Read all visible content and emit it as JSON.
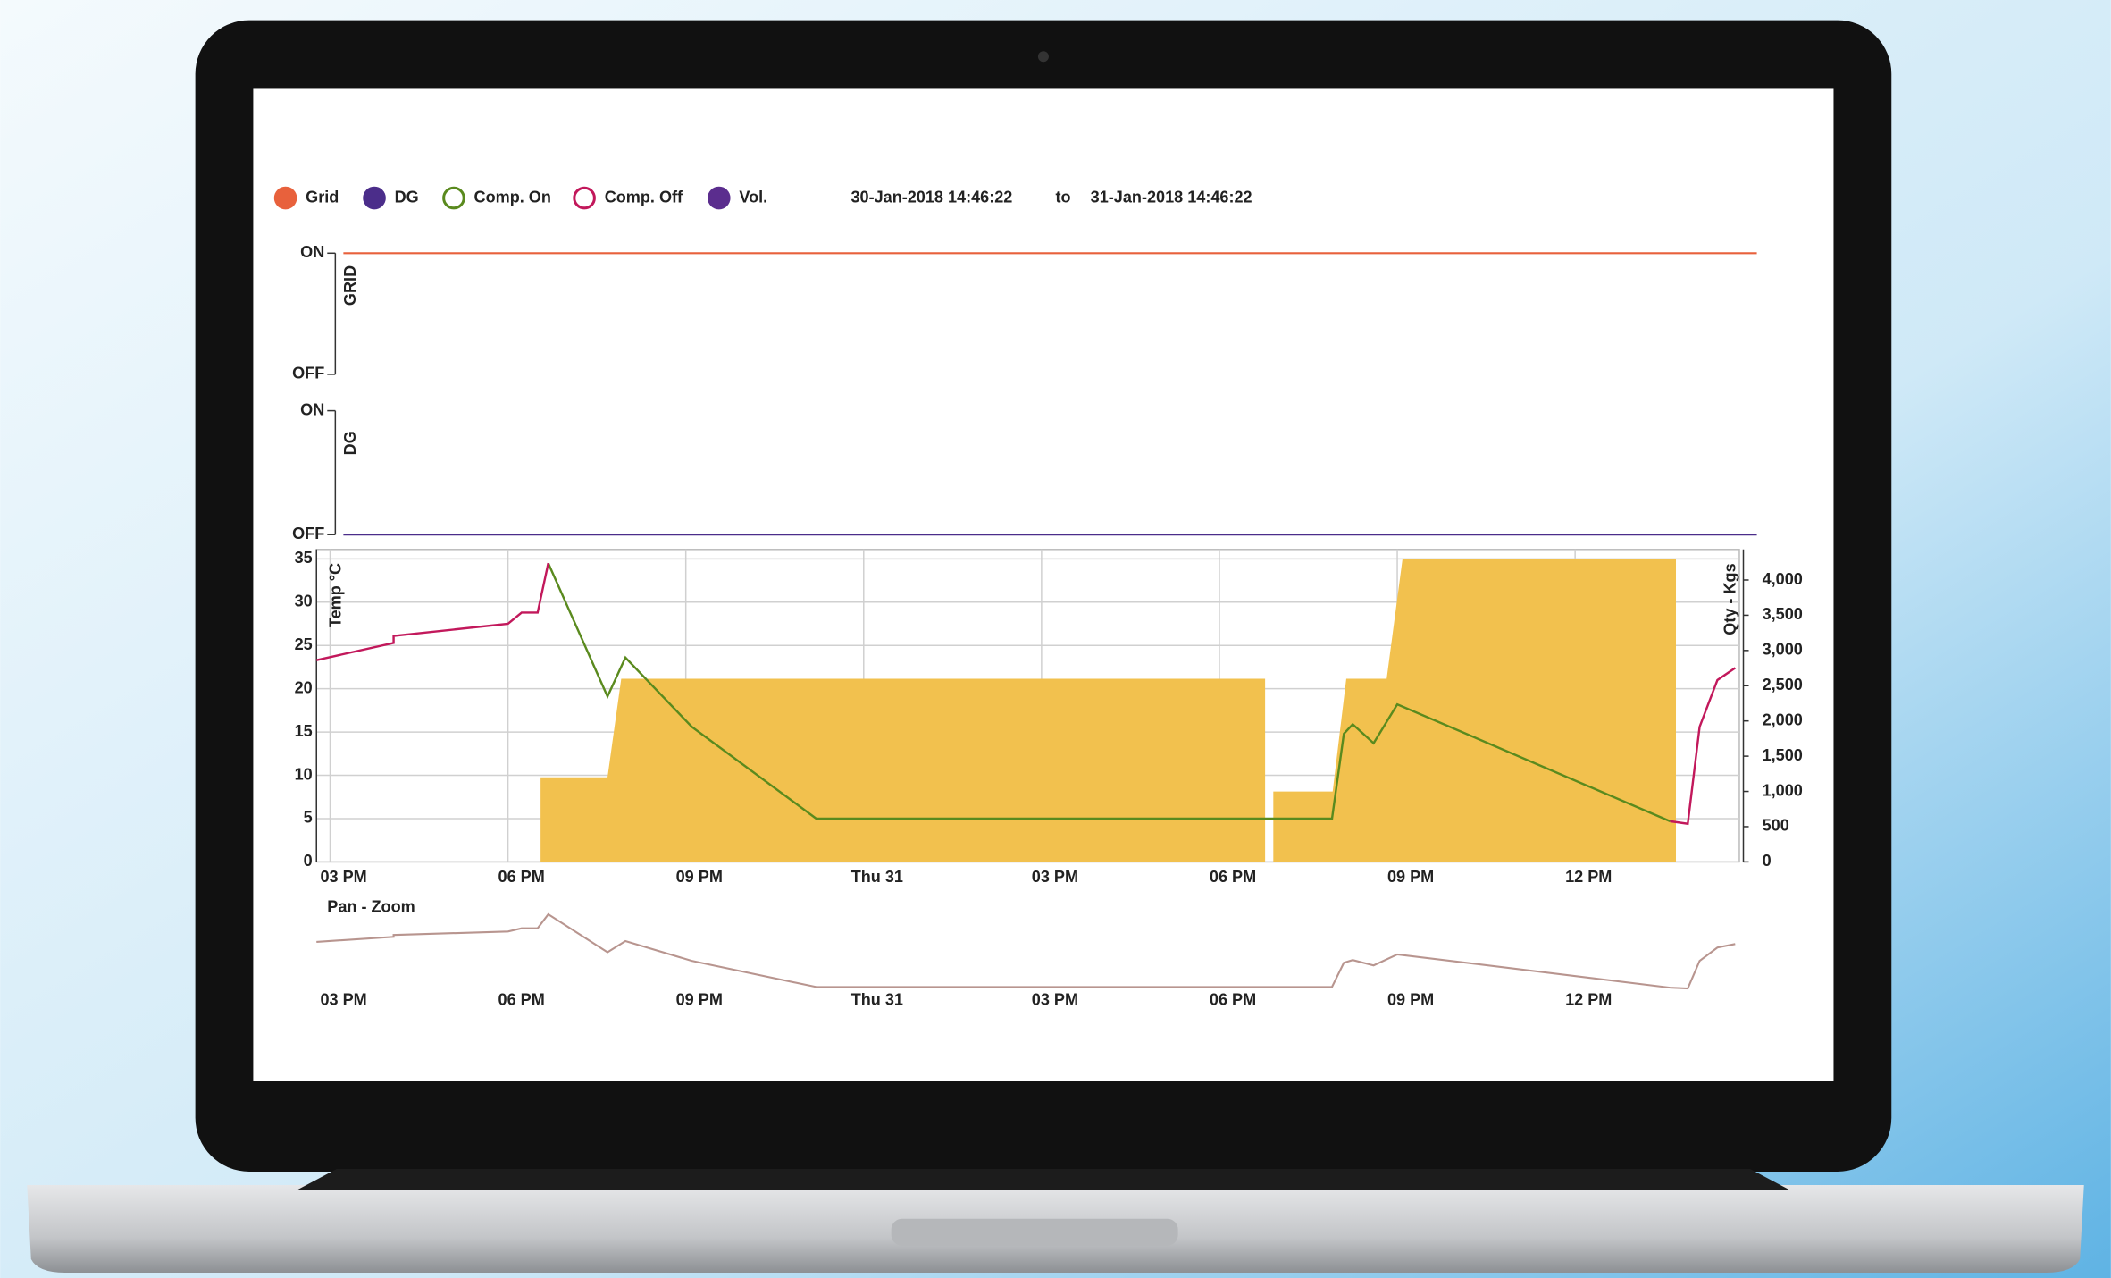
{
  "header": {
    "date_from": "30-Jan-2018 14:46:22",
    "date_sep": "to",
    "date_to": "31-Jan-2018 14:46:22",
    "extra_legend": {
      "name": "Vol.",
      "color": "#5b2d8e"
    }
  },
  "chart_data": [
    {
      "type": "line",
      "ylabel": "GRID",
      "x": [
        14.77,
        38.77
      ],
      "xlim": [
        14.77,
        38.77
      ],
      "ylim": [
        0,
        1
      ],
      "yticks": [
        {
          "value": 1,
          "label": "ON"
        },
        {
          "value": 0,
          "label": "OFF"
        }
      ],
      "series": [
        {
          "name": "Grid",
          "color": "#e8613c",
          "values": [
            1,
            1
          ]
        }
      ]
    },
    {
      "type": "line",
      "ylabel": "DG",
      "x": [
        14.77,
        38.77
      ],
      "xlim": [
        14.77,
        38.77
      ],
      "ylim": [
        0,
        1
      ],
      "yticks": [
        {
          "value": 1,
          "label": "ON"
        },
        {
          "value": 0,
          "label": "OFF"
        }
      ],
      "series": [
        {
          "name": "DG",
          "color": "#4b2d8a",
          "values": [
            0,
            0
          ]
        }
      ]
    },
    {
      "type": "combo",
      "ylabel": "Temp °C",
      "y2label": "Qty - Kgs",
      "grid": true,
      "xlim": [
        14.77,
        38.77
      ],
      "ylim": [
        0,
        35
      ],
      "y2lim": [
        0,
        4300
      ],
      "xticks": [
        {
          "value": 15,
          "label": "03 PM"
        },
        {
          "value": 18,
          "label": "06 PM"
        },
        {
          "value": 21,
          "label": "09 PM"
        },
        {
          "value": 24,
          "label": "Thu 31"
        },
        {
          "value": 27,
          "label": "03 PM"
        },
        {
          "value": 30,
          "label": "06 PM"
        },
        {
          "value": 33,
          "label": "09 PM"
        },
        {
          "value": 36,
          "label": "12 PM"
        }
      ],
      "yticks": [
        0,
        5,
        10,
        15,
        20,
        25,
        30,
        35
      ],
      "y2ticks": [
        0,
        500,
        {
          "value": 1000,
          "label": "1,000"
        },
        {
          "value": 1500,
          "label": "1,500"
        },
        {
          "value": 2000,
          "label": "2,000"
        },
        {
          "value": 2500,
          "label": "2,500"
        },
        {
          "value": 3000,
          "label": "3,000"
        },
        {
          "value": 3500,
          "label": "3,500"
        },
        {
          "value": 4000,
          "label": "4,000"
        }
      ],
      "x": [
        14.77,
        16.07,
        16.07,
        18.0,
        18.23,
        18.5,
        18.68,
        19.68,
        19.98,
        21.1,
        23.2,
        31.9,
        32.1,
        32.25,
        32.6,
        33.0,
        37.6,
        37.9,
        38.1,
        38.4,
        38.7
      ],
      "series": [
        {
          "name": "Comp. On",
          "color": "#5a8a1e",
          "marker": "hollow",
          "values": [
            null,
            null,
            null,
            null,
            null,
            null,
            34.5,
            19.1,
            23.6,
            15.6,
            5.0,
            5.0,
            14.8,
            15.9,
            13.7,
            18.2,
            4.7,
            null,
            null,
            null,
            null
          ]
        },
        {
          "name": "Comp. Off",
          "color": "#c2185b",
          "marker": "hollow",
          "values": [
            23.3,
            25.3,
            26.1,
            27.5,
            28.8,
            28.8,
            34.5,
            null,
            null,
            null,
            null,
            null,
            null,
            null,
            null,
            null,
            4.7,
            4.4,
            15.6,
            21.0,
            22.4
          ]
        },
        {
          "type": "area",
          "axis": "y2",
          "color": "#f2c14e",
          "x": [
            18.55,
            18.55,
            19.68,
            19.91,
            30.77,
            30.77,
            null,
            30.91,
            30.91,
            31.91,
            32.14,
            32.82,
            33.09,
            37.7,
            37.7
          ],
          "values": [
            0,
            1200,
            1200,
            2600,
            2600,
            0,
            null,
            0,
            1000,
            1000,
            2600,
            2600,
            4300,
            4300,
            0
          ]
        }
      ]
    },
    {
      "type": "line",
      "title": "Pan - Zoom",
      "xlim": [
        14.77,
        38.77
      ],
      "ylim": [
        0,
        35
      ],
      "xticks": [
        {
          "value": 15,
          "label": "03 PM"
        },
        {
          "value": 18,
          "label": "06 PM"
        },
        {
          "value": 21,
          "label": "09 PM"
        },
        {
          "value": 24,
          "label": "Thu 31"
        },
        {
          "value": 27,
          "label": "03 PM"
        },
        {
          "value": 30,
          "label": "06 PM"
        },
        {
          "value": 33,
          "label": "09 PM"
        },
        {
          "value": 36,
          "label": "12 PM"
        }
      ],
      "x": [
        14.77,
        16.07,
        16.07,
        18.0,
        18.23,
        18.5,
        18.68,
        19.68,
        19.98,
        21.1,
        23.2,
        31.9,
        32.1,
        32.25,
        32.6,
        33.0,
        37.6,
        37.9,
        38.1,
        38.4,
        38.7
      ],
      "series": [
        {
          "color": "#b8958f",
          "values": [
            23.3,
            25.3,
            26.1,
            27.5,
            28.8,
            28.8,
            34.5,
            19.1,
            23.6,
            15.6,
            5.0,
            5.0,
            14.8,
            15.9,
            13.7,
            18.2,
            4.7,
            4.4,
            15.6,
            21.0,
            22.4
          ]
        }
      ]
    }
  ]
}
